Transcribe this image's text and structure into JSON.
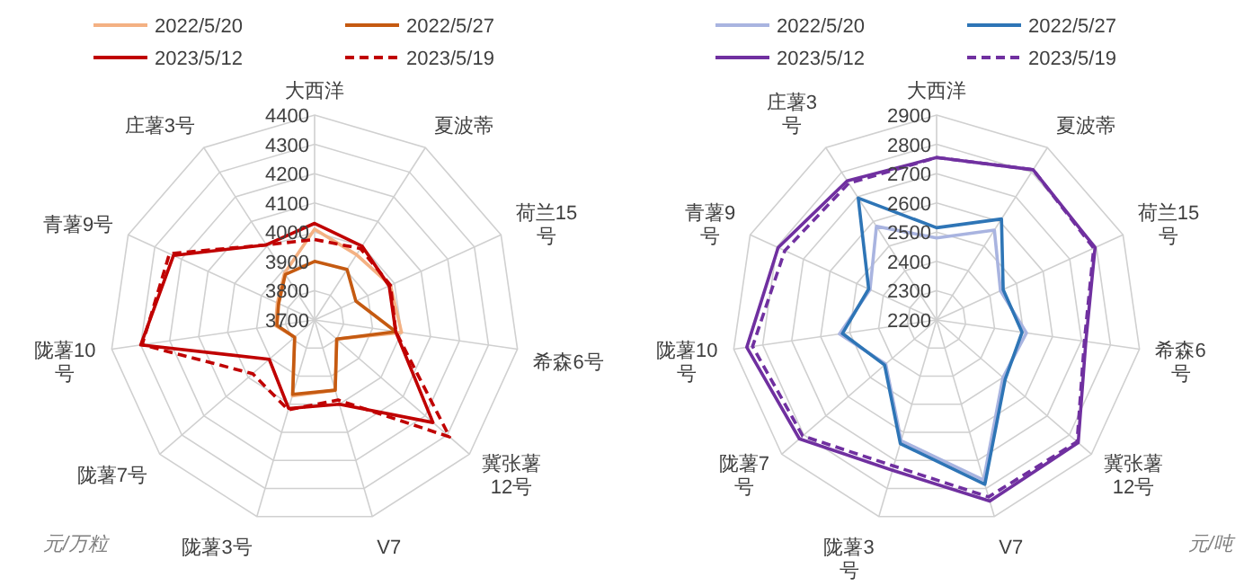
{
  "chart_data": [
    {
      "type": "radar",
      "categories": [
        "大西洋",
        "夏波蒂",
        "荷兰15号",
        "希森6号",
        "冀张薯12号",
        "V7",
        "陇薯3号",
        "陇薯7号",
        "陇薯10号",
        "青薯9号",
        "庄薯3号"
      ],
      "ylim": [
        3700,
        4400
      ],
      "yticks": [
        3700,
        3800,
        3900,
        4000,
        4100,
        4200,
        4300,
        4400
      ],
      "grid": true,
      "legend": "top",
      "series": [
        {
          "name": "2022/5/20",
          "color": "#f4b183",
          "line_style": "solid",
          "values": [
            4010,
            3965,
            3985,
            4000,
            3800,
            3950,
            3970,
            3790,
            3835,
            3840,
            3890
          ]
        },
        {
          "name": "2022/5/27",
          "color": "#c55a11",
          "line_style": "solid",
          "values": [
            3900,
            3905,
            3855,
            3980,
            3800,
            3950,
            3965,
            3790,
            3830,
            3835,
            3885
          ]
        },
        {
          "name": "2023/5/12",
          "color": "#c00000",
          "line_style": "solid",
          "values": [
            4030,
            4000,
            3980,
            3980,
            4235,
            4000,
            4015,
            3905,
            4300,
            4230,
            4005
          ]
        },
        {
          "name": "2023/5/19",
          "color": "#c00000",
          "line_style": "dashed",
          "values": [
            3975,
            3990,
            3985,
            3980,
            4310,
            3985,
            4020,
            3980,
            4295,
            4245,
            4005
          ]
        }
      ],
      "annotations": [
        "元/万粒"
      ]
    },
    {
      "type": "radar",
      "categories": [
        "大西洋",
        "夏波蒂",
        "荷兰15号",
        "希森6号",
        "冀张薯12号",
        "V7",
        "陇薯3号",
        "陇薯7号",
        "陇薯10号",
        "青薯9号",
        "庄薯3号"
      ],
      "ylim": [
        2200,
        2900
      ],
      "yticks": [
        2200,
        2300,
        2400,
        2500,
        2600,
        2700,
        2800,
        2900
      ],
      "grid": true,
      "legend": "top",
      "series": [
        {
          "name": "2022/5/20",
          "color": "#a9b4e0",
          "line_style": "solid",
          "values": [
            2480,
            2565,
            2440,
            2510,
            2500,
            2770,
            2630,
            2430,
            2535,
            2450,
            2580
          ]
        },
        {
          "name": "2022/5/27",
          "color": "#2e75b6",
          "line_style": "solid",
          "values": [
            2515,
            2610,
            2450,
            2495,
            2510,
            2785,
            2640,
            2435,
            2525,
            2455,
            2695
          ]
        },
        {
          "name": "2023/5/12",
          "color": "#7030a0",
          "line_style": "solid",
          "values": [
            2755,
            2810,
            2795,
            2715,
            2840,
            2845,
            2735,
            2820,
            2855,
            2795,
            2765
          ]
        },
        {
          "name": "2023/5/19",
          "color": "#7030a0",
          "line_style": "dashed",
          "values": [
            2755,
            2810,
            2790,
            2710,
            2835,
            2830,
            2720,
            2805,
            2835,
            2770,
            2755
          ]
        }
      ],
      "annotations": [
        "元/吨"
      ]
    }
  ]
}
